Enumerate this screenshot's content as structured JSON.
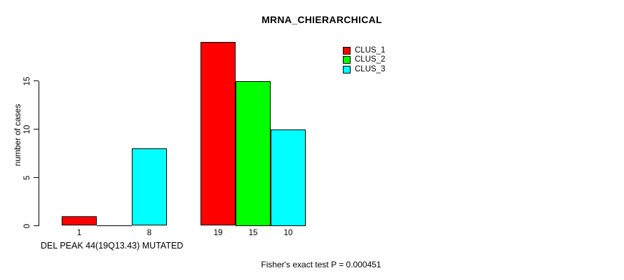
{
  "colors": {
    "background": "#FFFFFF",
    "axis": "#000000",
    "clus_1": "#FF0000",
    "clus_2": "#00FF00",
    "clus_3": "#00FFFF"
  },
  "chart_data": {
    "type": "bar",
    "title": "MRNA_CHIERARCHICAL",
    "ylabel": "number of cases",
    "xlabel": "DEL PEAK 44(19Q13.43) MUTATED",
    "annotation": "Fisher's exact test P = 0.000451",
    "ylim": [
      0,
      15
    ],
    "yticks": [
      0,
      5,
      10,
      15
    ],
    "grid": false,
    "legend": {
      "position": "top-right",
      "entries": [
        {
          "label": "CLUS_1",
          "color": "#FF0000"
        },
        {
          "label": "CLUS_2",
          "color": "#00FF00"
        },
        {
          "label": "CLUS_3",
          "color": "#00FFFF"
        }
      ]
    },
    "series": [
      {
        "name": "CLUS_1",
        "color": "#FF0000",
        "values": [
          1,
          19
        ]
      },
      {
        "name": "CLUS_2",
        "color": "#00FF00",
        "values": [
          0,
          15
        ]
      },
      {
        "name": "CLUS_3",
        "color": "#00FFFF",
        "values": [
          8,
          10
        ]
      }
    ],
    "bar_value_labels": [
      [
        "1",
        "",
        "8"
      ],
      [
        "19",
        "15",
        "10"
      ]
    ]
  }
}
